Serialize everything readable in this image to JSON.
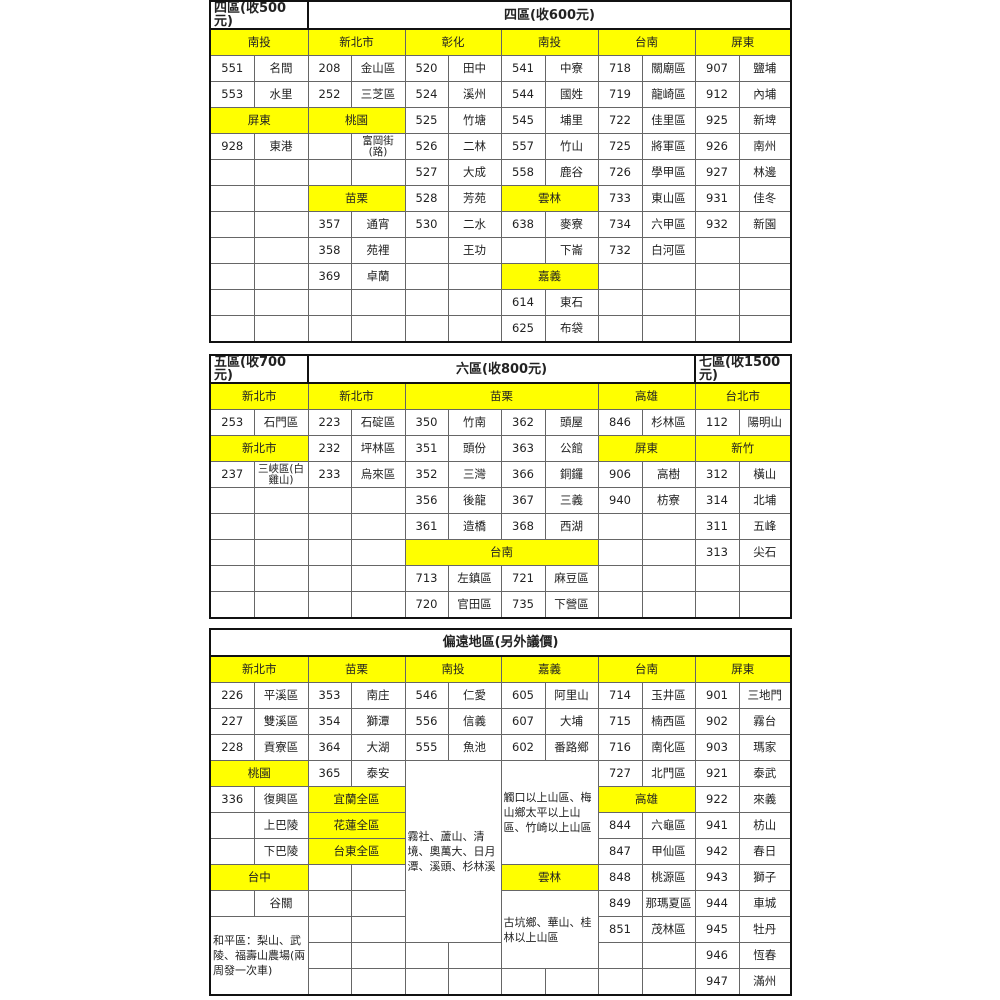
{
  "tables": [
    {
      "rows": [
        [
          [
            "四區(收500元)",
            2,
            1,
            "h hl"
          ],
          [
            "四區(收600元)",
            10,
            1,
            "hc"
          ]
        ],
        [
          [
            "南投",
            2,
            1,
            "y"
          ],
          [
            "新北市",
            2,
            1,
            "y"
          ],
          [
            "彰化",
            2,
            1,
            "y"
          ],
          [
            "南投",
            2,
            1,
            "y"
          ],
          [
            "台南",
            2,
            1,
            "y"
          ],
          [
            "屏東",
            2,
            1,
            "y"
          ]
        ],
        [
          [
            "551"
          ],
          [
            "名間"
          ],
          [
            "208"
          ],
          [
            "金山區"
          ],
          [
            "520"
          ],
          [
            "田中"
          ],
          [
            "541"
          ],
          [
            "中寮"
          ],
          [
            "718"
          ],
          [
            "關廟區"
          ],
          [
            "907"
          ],
          [
            "鹽埔"
          ]
        ],
        [
          [
            "553"
          ],
          [
            "水里"
          ],
          [
            "252"
          ],
          [
            "三芝區"
          ],
          [
            "524"
          ],
          [
            "溪州"
          ],
          [
            "544"
          ],
          [
            "國姓"
          ],
          [
            "719"
          ],
          [
            "龍崎區"
          ],
          [
            "912"
          ],
          [
            "內埔"
          ]
        ],
        [
          [
            "屏東",
            2,
            1,
            "y"
          ],
          [
            "桃園",
            2,
            1,
            "y"
          ],
          [
            "525"
          ],
          [
            "竹塘"
          ],
          [
            "545"
          ],
          [
            "埔里"
          ],
          [
            "722"
          ],
          [
            "佳里區"
          ],
          [
            "925"
          ],
          [
            "新埤"
          ]
        ],
        [
          [
            "928"
          ],
          [
            "東港"
          ],
          [
            ""
          ],
          [
            "富岡街(路)",
            1,
            1,
            "s"
          ],
          [
            "526"
          ],
          [
            "二林"
          ],
          [
            "557"
          ],
          [
            "竹山"
          ],
          [
            "725"
          ],
          [
            "將軍區"
          ],
          [
            "926"
          ],
          [
            "南州"
          ]
        ],
        [
          [
            ""
          ],
          [
            ""
          ],
          [
            ""
          ],
          [
            ""
          ],
          [
            "527"
          ],
          [
            "大成"
          ],
          [
            "558"
          ],
          [
            "鹿谷"
          ],
          [
            "726"
          ],
          [
            "學甲區"
          ],
          [
            "927"
          ],
          [
            "林邊"
          ]
        ],
        [
          [
            ""
          ],
          [
            ""
          ],
          [
            "苗栗",
            2,
            1,
            "y"
          ],
          [
            "528"
          ],
          [
            "芳苑"
          ],
          [
            "雲林",
            2,
            1,
            "y"
          ],
          [
            "733"
          ],
          [
            "東山區"
          ],
          [
            "931"
          ],
          [
            "佳冬"
          ]
        ],
        [
          [
            ""
          ],
          [
            ""
          ],
          [
            "357"
          ],
          [
            "通宵"
          ],
          [
            "530"
          ],
          [
            "二水"
          ],
          [
            "638"
          ],
          [
            "麥寮"
          ],
          [
            "734"
          ],
          [
            "六甲區"
          ],
          [
            "932"
          ],
          [
            "新園"
          ]
        ],
        [
          [
            ""
          ],
          [
            ""
          ],
          [
            "358"
          ],
          [
            "苑裡"
          ],
          [
            ""
          ],
          [
            "王功"
          ],
          [
            ""
          ],
          [
            "下崙"
          ],
          [
            "732"
          ],
          [
            "白河區"
          ],
          [
            ""
          ],
          [
            ""
          ]
        ],
        [
          [
            ""
          ],
          [
            ""
          ],
          [
            "369"
          ],
          [
            "卓蘭"
          ],
          [
            ""
          ],
          [
            ""
          ],
          [
            "嘉義",
            2,
            1,
            "y"
          ],
          [
            ""
          ],
          [
            ""
          ],
          [
            ""
          ],
          [
            ""
          ]
        ],
        [
          [
            ""
          ],
          [
            ""
          ],
          [
            ""
          ],
          [
            ""
          ],
          [
            ""
          ],
          [
            ""
          ],
          [
            "614"
          ],
          [
            "東石"
          ],
          [
            ""
          ],
          [
            ""
          ],
          [
            ""
          ],
          [
            ""
          ]
        ],
        [
          [
            ""
          ],
          [
            ""
          ],
          [
            ""
          ],
          [
            ""
          ],
          [
            ""
          ],
          [
            ""
          ],
          [
            "625"
          ],
          [
            "布袋"
          ],
          [
            ""
          ],
          [
            ""
          ],
          [
            ""
          ],
          [
            ""
          ]
        ]
      ]
    },
    {
      "rows": [
        [
          [
            "五區(收700元)",
            2,
            1,
            "h hl"
          ],
          [
            "六區(收800元)",
            8,
            1,
            "hc hl"
          ],
          [
            "七區(收1500元)",
            2,
            1,
            "h"
          ]
        ],
        [
          [
            "新北市",
            2,
            1,
            "y"
          ],
          [
            "新北市",
            2,
            1,
            "y"
          ],
          [
            "苗栗",
            4,
            1,
            "y"
          ],
          [
            "高雄",
            2,
            1,
            "y"
          ],
          [
            "台北市",
            2,
            1,
            "y"
          ]
        ],
        [
          [
            "253"
          ],
          [
            "石門區"
          ],
          [
            "223"
          ],
          [
            "石碇區"
          ],
          [
            "350"
          ],
          [
            "竹南"
          ],
          [
            "362"
          ],
          [
            "頭屋"
          ],
          [
            "846"
          ],
          [
            "杉林區"
          ],
          [
            "112"
          ],
          [
            "陽明山"
          ]
        ],
        [
          [
            "新北市",
            2,
            1,
            "y"
          ],
          [
            "232"
          ],
          [
            "坪林區"
          ],
          [
            "351"
          ],
          [
            "頭份"
          ],
          [
            "363"
          ],
          [
            "公館"
          ],
          [
            "屏東",
            2,
            1,
            "y"
          ],
          [
            "新竹",
            2,
            1,
            "y"
          ]
        ],
        [
          [
            "237"
          ],
          [
            "三峽區(白雞山)",
            1,
            1,
            "s"
          ],
          [
            "233"
          ],
          [
            "烏來區"
          ],
          [
            "352"
          ],
          [
            "三灣"
          ],
          [
            "366"
          ],
          [
            "銅鑼"
          ],
          [
            "906"
          ],
          [
            "高樹"
          ],
          [
            "312"
          ],
          [
            "橫山"
          ]
        ],
        [
          [
            ""
          ],
          [
            ""
          ],
          [
            ""
          ],
          [
            ""
          ],
          [
            "356"
          ],
          [
            "後龍"
          ],
          [
            "367"
          ],
          [
            "三義"
          ],
          [
            "940"
          ],
          [
            "枋寮"
          ],
          [
            "314"
          ],
          [
            "北埔"
          ]
        ],
        [
          [
            ""
          ],
          [
            ""
          ],
          [
            ""
          ],
          [
            ""
          ],
          [
            "361"
          ],
          [
            "造橋"
          ],
          [
            "368"
          ],
          [
            "西湖"
          ],
          [
            ""
          ],
          [
            ""
          ],
          [
            "311"
          ],
          [
            "五峰"
          ]
        ],
        [
          [
            ""
          ],
          [
            ""
          ],
          [
            ""
          ],
          [
            ""
          ],
          [
            "台南",
            4,
            1,
            "y"
          ],
          [
            ""
          ],
          [
            ""
          ],
          [
            "313"
          ],
          [
            "尖石"
          ]
        ],
        [
          [
            ""
          ],
          [
            ""
          ],
          [
            ""
          ],
          [
            ""
          ],
          [
            "713"
          ],
          [
            "左鎮區"
          ],
          [
            "721"
          ],
          [
            "麻豆區"
          ],
          [
            ""
          ],
          [
            ""
          ],
          [
            ""
          ],
          [
            ""
          ]
        ],
        [
          [
            ""
          ],
          [
            ""
          ],
          [
            ""
          ],
          [
            ""
          ],
          [
            "720"
          ],
          [
            "官田區"
          ],
          [
            "735"
          ],
          [
            "下營區"
          ],
          [
            ""
          ],
          [
            ""
          ],
          [
            ""
          ],
          [
            ""
          ]
        ]
      ]
    },
    {
      "rows": [
        [
          [
            "偏遠地區(另外議價)",
            12,
            1,
            "hc"
          ]
        ],
        [
          [
            "新北市",
            2,
            1,
            "y"
          ],
          [
            "苗栗",
            2,
            1,
            "y"
          ],
          [
            "南投",
            2,
            1,
            "y"
          ],
          [
            "嘉義",
            2,
            1,
            "y"
          ],
          [
            "台南",
            2,
            1,
            "y"
          ],
          [
            "屏東",
            2,
            1,
            "y"
          ]
        ],
        [
          [
            "226"
          ],
          [
            "平溪區"
          ],
          [
            "353"
          ],
          [
            "南庄"
          ],
          [
            "546"
          ],
          [
            "仁愛"
          ],
          [
            "605"
          ],
          [
            "阿里山"
          ],
          [
            "714"
          ],
          [
            "玉井區"
          ],
          [
            "901"
          ],
          [
            "三地門"
          ]
        ],
        [
          [
            "227"
          ],
          [
            "雙溪區"
          ],
          [
            "354"
          ],
          [
            "獅潭"
          ],
          [
            "556"
          ],
          [
            "信義"
          ],
          [
            "607"
          ],
          [
            "大埔"
          ],
          [
            "715"
          ],
          [
            "楠西區"
          ],
          [
            "902"
          ],
          [
            "霧台"
          ]
        ],
        [
          [
            "228"
          ],
          [
            "貢寮區"
          ],
          [
            "364"
          ],
          [
            "大湖"
          ],
          [
            "555"
          ],
          [
            "魚池"
          ],
          [
            "602"
          ],
          [
            "番路鄉"
          ],
          [
            "716"
          ],
          [
            "南化區"
          ],
          [
            "903"
          ],
          [
            "瑪家"
          ]
        ],
        [
          [
            "桃園",
            2,
            1,
            "y"
          ],
          [
            "365"
          ],
          [
            "泰安"
          ],
          [
            "霧社、蘆山、清境、奧萬大、日月潭、溪頭、杉林溪",
            2,
            7,
            "w"
          ],
          [
            "觸口以上山區、梅山鄉太平以上山區、竹崎以上山區",
            2,
            4,
            "w"
          ],
          [
            "727"
          ],
          [
            "北門區"
          ],
          [
            "921"
          ],
          [
            "泰武"
          ]
        ],
        [
          [
            "336"
          ],
          [
            "復興區"
          ],
          [
            "宜蘭全區",
            2,
            1,
            "y"
          ],
          [
            "高雄",
            2,
            1,
            "y"
          ],
          [
            "922"
          ],
          [
            "來義"
          ]
        ],
        [
          [
            ""
          ],
          [
            "上巴陵"
          ],
          [
            "花蓮全區",
            2,
            1,
            "y"
          ],
          [
            "844"
          ],
          [
            "六龜區"
          ],
          [
            "941"
          ],
          [
            "枋山"
          ]
        ],
        [
          [
            ""
          ],
          [
            "下巴陵"
          ],
          [
            "台東全區",
            2,
            1,
            "y"
          ],
          [
            "847"
          ],
          [
            "甲仙區"
          ],
          [
            "942"
          ],
          [
            "春日"
          ]
        ],
        [
          [
            "台中",
            2,
            1,
            "y"
          ],
          [
            ""
          ],
          [
            ""
          ],
          [
            "雲林",
            2,
            1,
            "y"
          ],
          [
            "848"
          ],
          [
            "桃源區"
          ],
          [
            "943"
          ],
          [
            "獅子"
          ]
        ],
        [
          [
            ""
          ],
          [
            "谷關"
          ],
          [
            ""
          ],
          [
            ""
          ],
          [
            "古坑鄉、華山、桂林以上山區",
            2,
            3,
            "w"
          ],
          [
            "849"
          ],
          [
            "那瑪夏區"
          ],
          [
            "944"
          ],
          [
            "車城"
          ]
        ],
        [
          [
            "和平區：梨山、武陵、福壽山農場(兩周發一次車)",
            2,
            3,
            "w"
          ],
          [
            ""
          ],
          [
            ""
          ],
          [
            "851"
          ],
          [
            "茂林區"
          ],
          [
            "945"
          ],
          [
            "牡丹"
          ]
        ],
        [
          [
            ""
          ],
          [
            ""
          ],
          [
            ""
          ],
          [
            ""
          ],
          [
            ""
          ],
          [
            ""
          ],
          [
            "946"
          ],
          [
            "恆春"
          ]
        ],
        [
          [
            ""
          ],
          [
            ""
          ],
          [
            ""
          ],
          [
            ""
          ],
          [
            ""
          ],
          [
            ""
          ],
          [
            ""
          ],
          [
            ""
          ],
          [
            "947"
          ],
          [
            "滿州"
          ]
        ]
      ]
    }
  ],
  "colors": {
    "header_fill": "#ffff00",
    "border": "#666666"
  }
}
